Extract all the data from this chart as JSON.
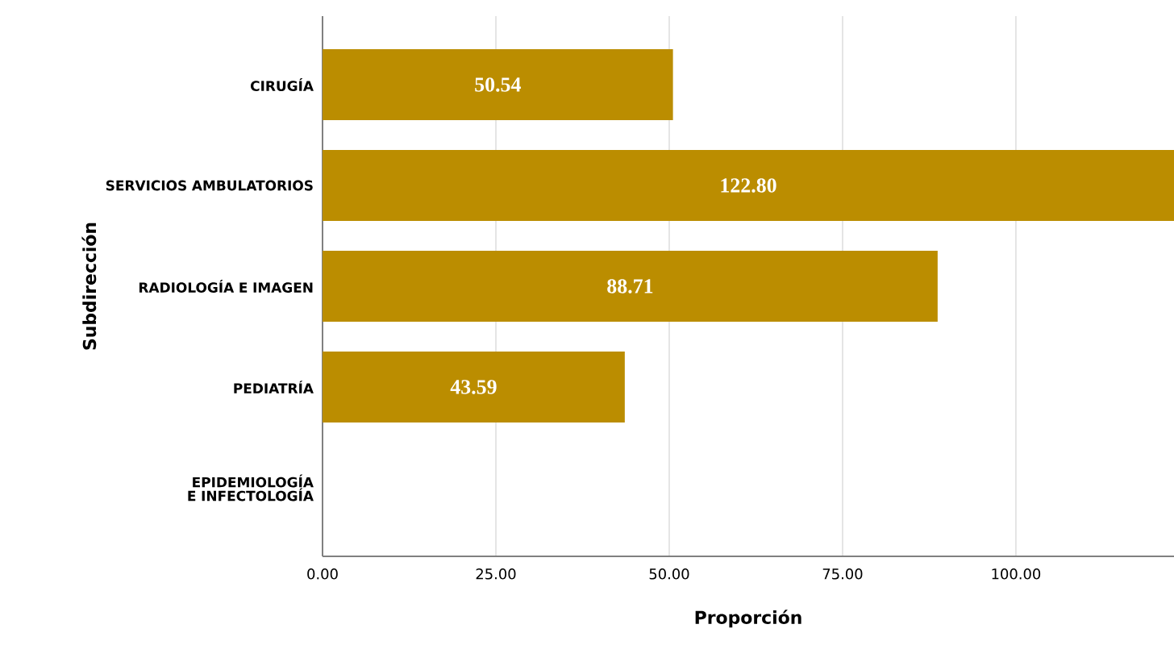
{
  "chart_data": {
    "type": "bar",
    "orientation": "horizontal",
    "xlabel": "Proporción",
    "ylabel": "Subdirección",
    "categories": [
      "CIRUGÍA",
      "SERVICIOS AMBULATORIOS",
      "RADIOLOGÍA E IMAGEN",
      "PEDIATRÍA",
      "EPIDEMIOLOGÍA E INFECTOLOGÍA"
    ],
    "values": [
      50.54,
      122.8,
      88.71,
      43.59,
      null
    ],
    "value_labels": [
      "50.54",
      "122.80",
      "88.71",
      "43.59",
      null
    ],
    "color": "#bb8d00",
    "xlim": [
      0,
      122.8
    ],
    "xticks": [
      {
        "value": 0,
        "label": "0.00"
      },
      {
        "value": 25,
        "label": "25.00"
      },
      {
        "value": 50,
        "label": "50.00"
      },
      {
        "value": 75,
        "label": "75.00"
      },
      {
        "value": 100,
        "label": "100.00"
      }
    ],
    "grid": "x"
  }
}
